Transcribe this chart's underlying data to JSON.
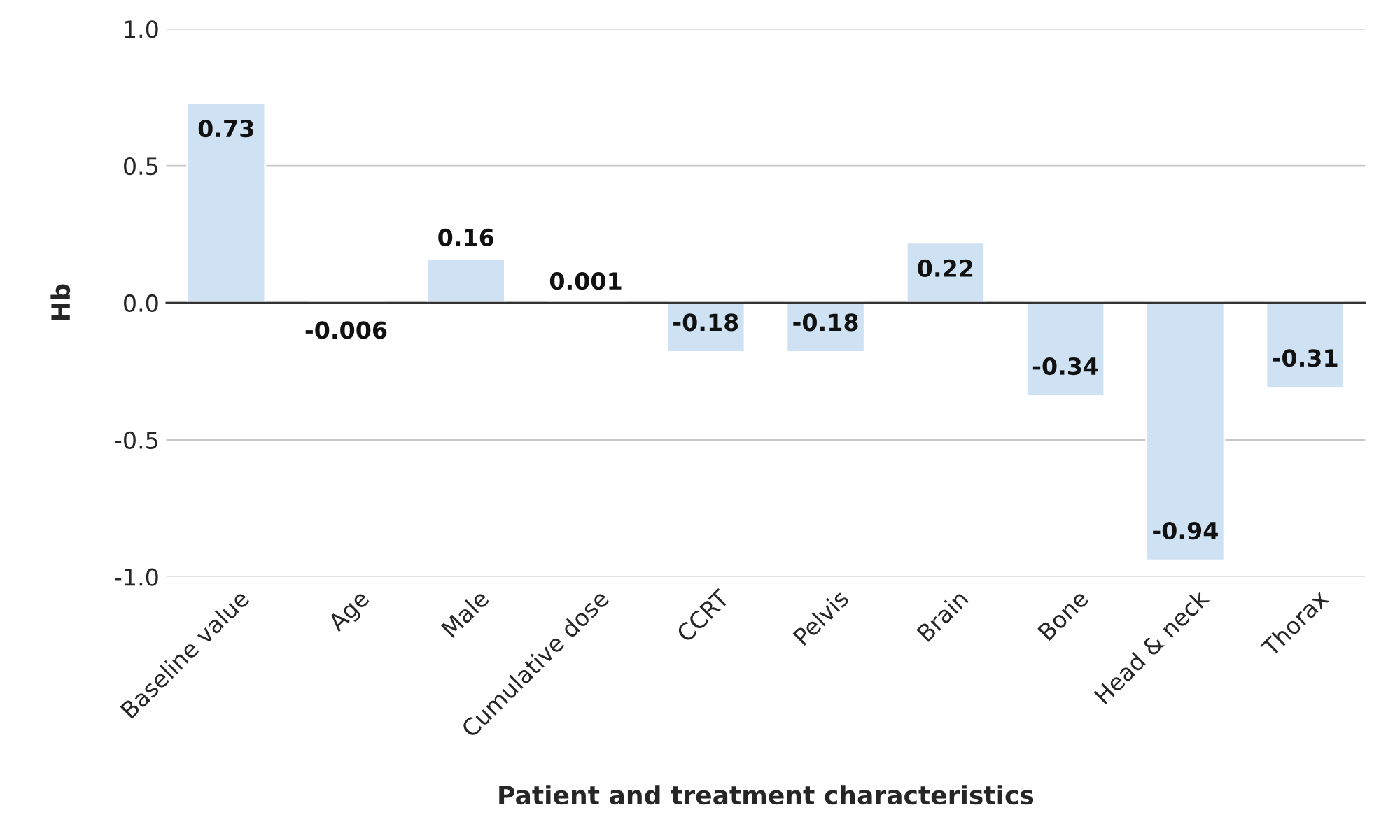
{
  "chart_data": {
    "type": "bar",
    "categories": [
      "Baseline value",
      "Age",
      "Male",
      "Cumulative dose",
      "CCRT",
      "Pelvis",
      "Brain",
      "Bone",
      "Head & neck",
      "Thorax"
    ],
    "values": [
      0.73,
      -0.006,
      0.16,
      0.001,
      -0.18,
      -0.18,
      0.22,
      -0.34,
      -0.94,
      -0.31
    ],
    "color": "#cfe2f3",
    "xlabel": "Patient and treatment characteristics",
    "ylabel": "Hb",
    "ylim": [
      -1.0,
      1.0
    ],
    "yticks": [
      {
        "value": -1.0,
        "label": "-1.0"
      },
      {
        "value": -0.5,
        "label": "-0.5"
      },
      {
        "value": 0.0,
        "label": "0.0"
      },
      {
        "value": 0.5,
        "label": "0.5"
      },
      {
        "value": 1.0,
        "label": "1.0"
      }
    ],
    "grid": "y",
    "data_labels": true
  }
}
